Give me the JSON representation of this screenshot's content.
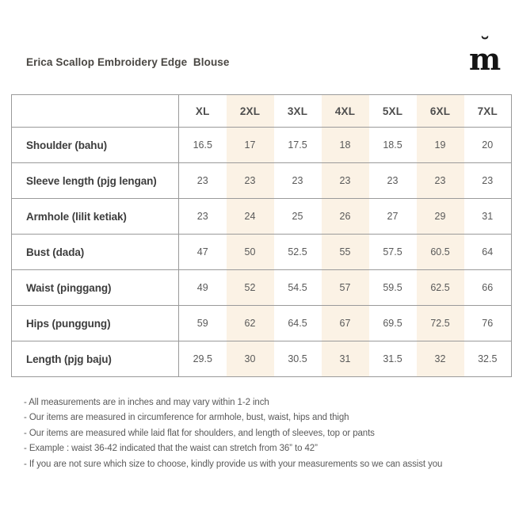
{
  "header": {
    "title": "Erica Scallop Embroidery Edge  Blouse",
    "logo_letter": "m",
    "logo_breve": "˘"
  },
  "size_chart": {
    "columns": [
      "XL",
      "2XL",
      "3XL",
      "4XL",
      "5XL",
      "6XL",
      "7XL"
    ],
    "highlighted_columns": [
      "2XL",
      "4XL",
      "6XL"
    ],
    "rows": [
      {
        "label": "Shoulder (bahu)",
        "values": [
          "16.5",
          "17",
          "17.5",
          "18",
          "18.5",
          "19",
          "20"
        ]
      },
      {
        "label": "Sleeve length (pjg lengan)",
        "values": [
          "23",
          "23",
          "23",
          "23",
          "23",
          "23",
          "23"
        ]
      },
      {
        "label": "Armhole (lilit ketiak)",
        "values": [
          "23",
          "24",
          "25",
          "26",
          "27",
          "29",
          "31"
        ]
      },
      {
        "label": "Bust (dada)",
        "values": [
          "47",
          "50",
          "52.5",
          "55",
          "57.5",
          "60.5",
          "64"
        ]
      },
      {
        "label": "Waist (pinggang)",
        "values": [
          "49",
          "52",
          "54.5",
          "57",
          "59.5",
          "62.5",
          "66"
        ]
      },
      {
        "label": "Hips (punggung)",
        "values": [
          "59",
          "62",
          "64.5",
          "67",
          "69.5",
          "72.5",
          "76"
        ]
      },
      {
        "label": "Length (pjg baju)",
        "values": [
          "29.5",
          "30",
          "30.5",
          "31",
          "31.5",
          "32",
          "32.5"
        ]
      }
    ]
  },
  "notes": [
    "- All measurements are in inches and may vary within 1-2 inch",
    "- Our items are measured in circumference for armhole, bust, waist, hips and thigh",
    "- Our items are measured while laid flat for shoulders, and length of sleeves, top or pants",
    "- Example : waist 36-42 indicated that the waist can stretch from 36” to 42”",
    "- If you are not sure which size to choose, kindly provide us with your measurements so we can assist you"
  ],
  "colors": {
    "column_highlight": "#fbf2e5",
    "table_border": "#9a9a9a",
    "title_text": "#4a4743",
    "header_text": "#4e4e4e",
    "label_text": "#3d3d3d",
    "value_text": "#595959",
    "note_text": "#5a5a5a",
    "logo": "#141414"
  }
}
